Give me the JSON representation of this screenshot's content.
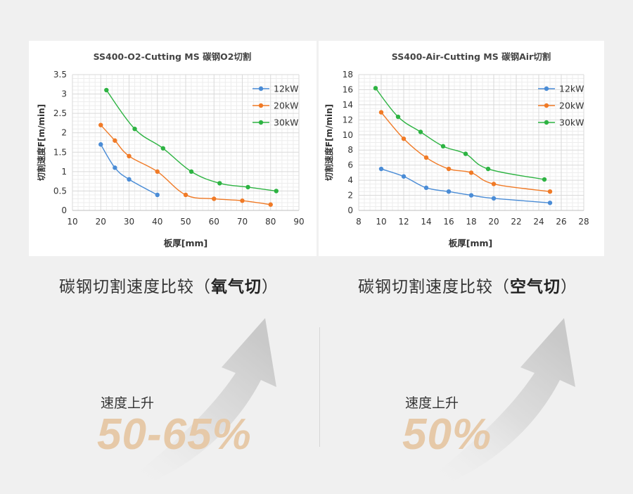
{
  "captions": {
    "left_prefix": "碳钢切割速度比较（",
    "left_bold": "氧气切",
    "left_suffix": "）",
    "right_prefix": "碳钢切割速度比较（",
    "right_bold": "空气切",
    "right_suffix": "）"
  },
  "speedup": {
    "left_label": "速度上升",
    "left_value": "50-65%",
    "right_label": "速度上升",
    "right_value": "50%"
  },
  "colors": {
    "12kW": "#4a8cd6",
    "20kW": "#f07a26",
    "30kW": "#2db342",
    "accent": "#e6c9a8"
  },
  "chart_data": [
    {
      "type": "line",
      "title": "SS400-O2-Cutting MS 碳钢O2切割",
      "xlabel": "板厚[mm]",
      "ylabel": "切割速度F[m/min]",
      "xlim": [
        10,
        90
      ],
      "ylim": [
        0,
        3.5
      ],
      "xticks": [
        10,
        20,
        30,
        40,
        50,
        60,
        70,
        80,
        90
      ],
      "yticks": [
        0,
        0.5,
        1,
        1.5,
        2,
        2.5,
        3,
        3.5
      ],
      "ytick_labels": [
        "0",
        "0.5",
        "1",
        "1.5",
        "2",
        "2.5",
        "3",
        "3.5"
      ],
      "grid": true,
      "legend": "top-right",
      "series": [
        {
          "name": "12kW",
          "x": [
            20,
            25,
            30,
            40
          ],
          "y": [
            1.7,
            1.1,
            0.8,
            0.4
          ]
        },
        {
          "name": "20kW",
          "x": [
            20,
            25,
            30,
            40,
            50,
            60,
            70,
            80
          ],
          "y": [
            2.2,
            1.8,
            1.4,
            1.0,
            0.4,
            0.3,
            0.25,
            0.15
          ]
        },
        {
          "name": "30kW",
          "x": [
            22,
            32,
            42,
            52,
            62,
            72,
            82
          ],
          "y": [
            3.1,
            2.1,
            1.6,
            1.0,
            0.7,
            0.6,
            0.5
          ]
        }
      ]
    },
    {
      "type": "line",
      "title": "SS400-Air-Cutting MS 碳钢Air切割",
      "xlabel": "板厚[mm]",
      "ylabel": "切割速度F[m/min]",
      "xlim": [
        8,
        28
      ],
      "ylim": [
        0,
        18
      ],
      "xticks": [
        8,
        10,
        12,
        14,
        16,
        18,
        20,
        22,
        24,
        26,
        28
      ],
      "yticks": [
        0,
        2,
        4,
        6,
        8,
        10,
        12,
        14,
        16,
        18
      ],
      "ytick_labels": [
        "0",
        "2",
        "4",
        "6",
        "8",
        "10",
        "12",
        "14",
        "16",
        "18"
      ],
      "grid": true,
      "legend": "top-right",
      "series": [
        {
          "name": "12kW",
          "x": [
            10,
            12,
            14,
            16,
            18,
            20,
            25
          ],
          "y": [
            5.5,
            4.5,
            3.0,
            2.5,
            2.0,
            1.6,
            1.0
          ]
        },
        {
          "name": "20kW",
          "x": [
            10,
            12,
            14,
            16,
            18,
            20,
            25
          ],
          "y": [
            13.0,
            9.5,
            7.0,
            5.5,
            5.0,
            3.5,
            2.5
          ]
        },
        {
          "name": "30kW",
          "x": [
            9.5,
            11.5,
            13.5,
            15.5,
            17.5,
            19.5,
            24.5
          ],
          "y": [
            16.2,
            12.4,
            10.4,
            8.5,
            7.5,
            5.5,
            4.1
          ]
        }
      ]
    }
  ]
}
